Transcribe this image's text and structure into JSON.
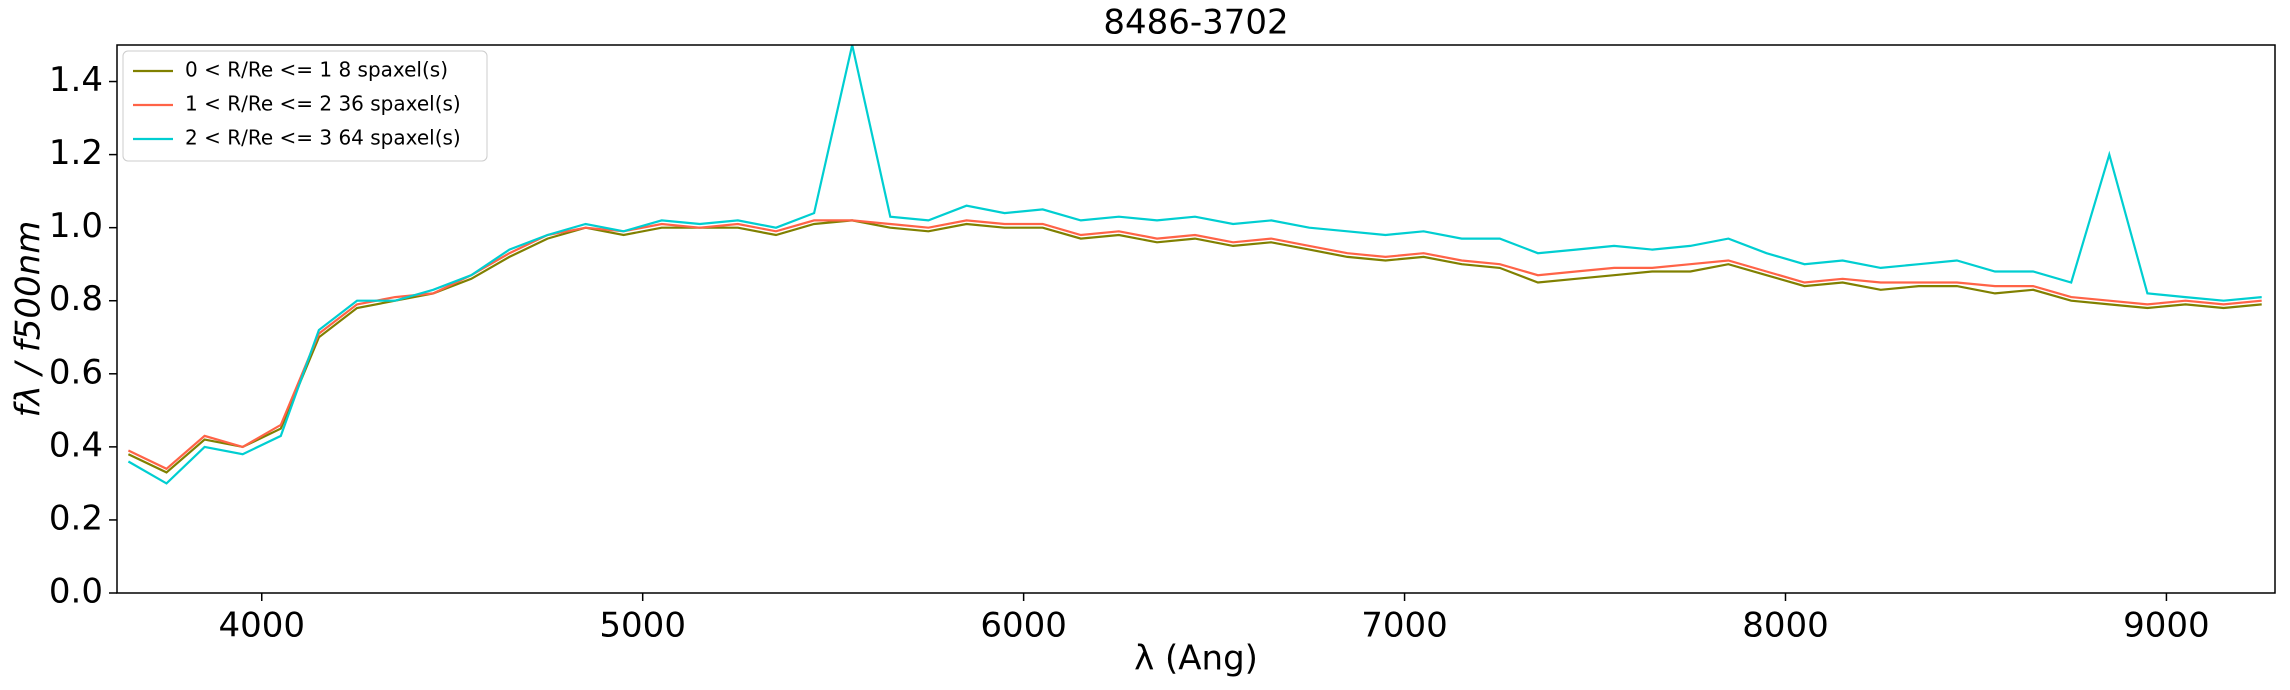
{
  "chart_data": {
    "type": "line",
    "title": "8486-3702",
    "xlabel": "λ (Ang)",
    "ylabel": "fλ / f500nm",
    "x": [
      3650,
      3750,
      3850,
      3950,
      4050,
      4150,
      4250,
      4350,
      4450,
      4550,
      4650,
      4750,
      4850,
      4950,
      5050,
      5150,
      5250,
      5350,
      5450,
      5550,
      5650,
      5750,
      5850,
      5950,
      6050,
      6150,
      6250,
      6350,
      6450,
      6550,
      6650,
      6750,
      6850,
      6950,
      7050,
      7150,
      7250,
      7350,
      7450,
      7550,
      7650,
      7750,
      7850,
      7950,
      8050,
      8150,
      8250,
      8350,
      8450,
      8550,
      8650,
      8750,
      8850,
      8950,
      9050,
      9150,
      9250
    ],
    "series": [
      {
        "name": "0 < R/Re <= 1 8 spaxel(s)",
        "color": "#808000",
        "values": [
          0.38,
          0.33,
          0.42,
          0.4,
          0.45,
          0.7,
          0.78,
          0.8,
          0.82,
          0.86,
          0.92,
          0.97,
          1.0,
          0.98,
          1.0,
          1.0,
          1.0,
          0.98,
          1.01,
          1.02,
          1.0,
          0.99,
          1.01,
          1.0,
          1.0,
          0.97,
          0.98,
          0.96,
          0.97,
          0.95,
          0.96,
          0.94,
          0.92,
          0.91,
          0.92,
          0.9,
          0.89,
          0.85,
          0.86,
          0.87,
          0.88,
          0.88,
          0.9,
          0.87,
          0.84,
          0.85,
          0.83,
          0.84,
          0.84,
          0.82,
          0.83,
          0.8,
          0.79,
          0.78,
          0.79,
          0.78,
          0.79
        ]
      },
      {
        "name": "1 < R/Re <= 2 36 spaxel(s)",
        "color": "#ff6347",
        "values": [
          0.39,
          0.34,
          0.43,
          0.4,
          0.46,
          0.71,
          0.79,
          0.81,
          0.82,
          0.87,
          0.93,
          0.98,
          1.0,
          0.99,
          1.01,
          1.0,
          1.01,
          0.99,
          1.02,
          1.02,
          1.01,
          1.0,
          1.02,
          1.01,
          1.01,
          0.98,
          0.99,
          0.97,
          0.98,
          0.96,
          0.97,
          0.95,
          0.93,
          0.92,
          0.93,
          0.91,
          0.9,
          0.87,
          0.88,
          0.89,
          0.89,
          0.9,
          0.91,
          0.88,
          0.85,
          0.86,
          0.85,
          0.85,
          0.85,
          0.84,
          0.84,
          0.81,
          0.8,
          0.79,
          0.8,
          0.79,
          0.8
        ]
      },
      {
        "name": "2 < R/Re <= 3 64 spaxel(s)",
        "color": "#00ced1",
        "values": [
          0.36,
          0.3,
          0.4,
          0.38,
          0.43,
          0.72,
          0.8,
          0.8,
          0.83,
          0.87,
          0.94,
          0.98,
          1.01,
          0.99,
          1.02,
          1.01,
          1.02,
          1.0,
          1.04,
          1.5,
          1.03,
          1.02,
          1.06,
          1.04,
          1.05,
          1.02,
          1.03,
          1.02,
          1.03,
          1.01,
          1.02,
          1.0,
          0.99,
          0.98,
          0.99,
          0.97,
          0.97,
          0.93,
          0.94,
          0.95,
          0.94,
          0.95,
          0.97,
          0.93,
          0.9,
          0.91,
          0.89,
          0.9,
          0.91,
          0.88,
          0.88,
          0.85,
          1.2,
          0.82,
          0.81,
          0.8,
          0.81
        ]
      }
    ],
    "xlim": [
      3620,
      9285
    ],
    "ylim": [
      0,
      1.5
    ],
    "xticks": [
      4000,
      5000,
      6000,
      7000,
      8000,
      9000
    ],
    "yticks": [
      {
        "value": 0,
        "label": "0.0"
      },
      0.2,
      0.4,
      0.6,
      0.8,
      {
        "value": 1,
        "label": "1.0"
      },
      1.2,
      1.4
    ],
    "legend": "upper left"
  }
}
